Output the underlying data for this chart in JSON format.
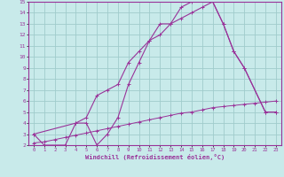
{
  "xlabel": "Windchill (Refroidissement éolien,°C)",
  "bg_color": "#c8eaea",
  "grid_color": "#a0cccc",
  "line_color": "#993399",
  "xlim": [
    -0.5,
    23.5
  ],
  "ylim": [
    2,
    15
  ],
  "yticks": [
    2,
    3,
    4,
    5,
    6,
    7,
    8,
    9,
    10,
    11,
    12,
    13,
    14,
    15
  ],
  "xticks": [
    0,
    1,
    2,
    3,
    4,
    5,
    6,
    7,
    8,
    9,
    10,
    11,
    12,
    13,
    14,
    15,
    16,
    17,
    18,
    19,
    20,
    21,
    22,
    23
  ],
  "line1_x": [
    0,
    1,
    3,
    4,
    5,
    6,
    7,
    8,
    9,
    10,
    11,
    12,
    13,
    14,
    15,
    17,
    18,
    19,
    20,
    22,
    23
  ],
  "line1_y": [
    3,
    2,
    2,
    4,
    4,
    2,
    3,
    4.5,
    7.5,
    9.5,
    11.5,
    13,
    13,
    14.5,
    15,
    15,
    13,
    10.5,
    9,
    5,
    5
  ],
  "line2_x": [
    0,
    1,
    2,
    3,
    4,
    5,
    6,
    7,
    8,
    9,
    10,
    11,
    12,
    13,
    14,
    15,
    16,
    17,
    18,
    19,
    20,
    21,
    22,
    23
  ],
  "line2_y": [
    2.2,
    2.3,
    2.5,
    2.7,
    2.9,
    3.1,
    3.3,
    3.5,
    3.7,
    3.9,
    4.1,
    4.3,
    4.5,
    4.7,
    4.9,
    5.0,
    5.2,
    5.4,
    5.5,
    5.6,
    5.7,
    5.8,
    5.9,
    6.0
  ],
  "line3_x": [
    0,
    4,
    5,
    6,
    7,
    8,
    9,
    10,
    11,
    12,
    13,
    14,
    15,
    16,
    17,
    18,
    19,
    20,
    22,
    23
  ],
  "line3_y": [
    3,
    4.0,
    4.5,
    6.5,
    7.0,
    7.5,
    9.5,
    10.5,
    11.5,
    12,
    13,
    13.5,
    14,
    14.5,
    15,
    13,
    10.5,
    9,
    5,
    5
  ]
}
